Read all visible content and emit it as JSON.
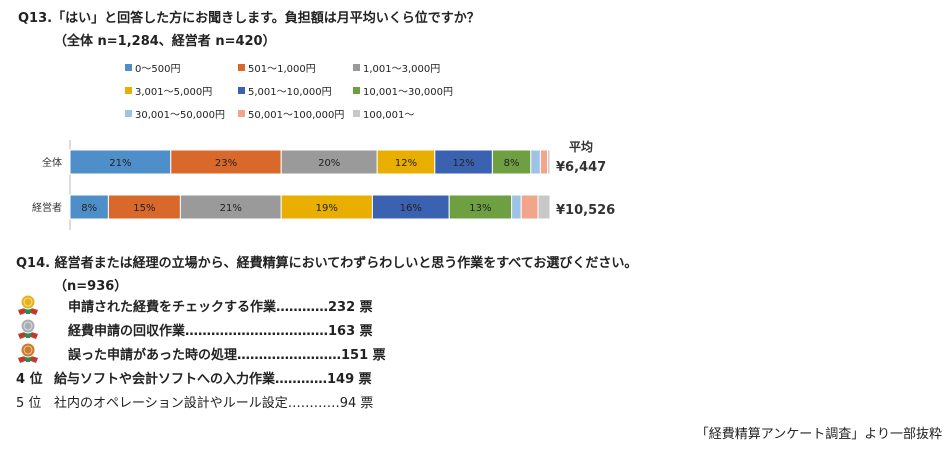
{
  "q13": {
    "title": "Q13.「はい」と回答した方にお聞きします。負担額は月平均いくら位ですか？",
    "subtitle": "（全体 n=1,284、経営者 n=420）"
  },
  "chart_data": {
    "type": "bar",
    "orientation": "horizontal-stacked-100",
    "categories": [
      "全体",
      "経営者"
    ],
    "legend_placement": "top",
    "series": [
      {
        "name": "0～500円",
        "color": "#4f8fc9",
        "values": [
          21,
          8
        ],
        "labels": [
          "21%",
          "8%"
        ]
      },
      {
        "name": "501～1,000円",
        "color": "#d9682b",
        "values": [
          23,
          15
        ],
        "labels": [
          "23%",
          "15%"
        ]
      },
      {
        "name": "1,001～3,000円",
        "color": "#9a9a9a",
        "values": [
          20,
          21
        ],
        "labels": [
          "20%",
          "21%"
        ]
      },
      {
        "name": "3,001～5,000円",
        "color": "#e8ae00",
        "values": [
          12,
          19
        ],
        "labels": [
          "12%",
          "19%"
        ]
      },
      {
        "name": "5,001～10,000円",
        "color": "#3b62b0",
        "values": [
          12,
          16
        ],
        "labels": [
          "12%",
          "16%"
        ]
      },
      {
        "name": "10,001～30,000円",
        "color": "#6ea041",
        "values": [
          8,
          13
        ],
        "labels": [
          "8%",
          "13%"
        ]
      },
      {
        "name": "30,001～50,000円",
        "color": "#9ec3e6",
        "values": [
          2,
          2
        ],
        "labels": [
          "",
          ""
        ]
      },
      {
        "name": "50,001～100,000円",
        "color": "#f2a58a",
        "values": [
          1.5,
          3.5
        ],
        "labels": [
          "",
          ""
        ]
      },
      {
        "name": "100,001～",
        "color": "#c8c8c8",
        "values": [
          0.5,
          2.5
        ],
        "labels": [
          "",
          ""
        ]
      }
    ],
    "average_title": "平均",
    "averages": [
      "¥6,447",
      "¥10,526"
    ]
  },
  "q14": {
    "title": "Q14. 経営者または経理の立場から、経費精算においてわずらわしいと思う作業をすべてお選びください。",
    "subtitle": "（n=936）",
    "ranks": [
      {
        "rank": "",
        "badge": "gold-medal-icon",
        "badge_color": "#e8b21a",
        "text": "申請された経費をチェックする作業…………",
        "value": "232 票",
        "bold": true
      },
      {
        "rank": "",
        "badge": "silver-medal-icon",
        "badge_color": "#a9aeb5",
        "text": "経費申請の回収作業……………………………",
        "value": "163 票",
        "bold": true
      },
      {
        "rank": "",
        "badge": "bronze-medal-icon",
        "badge_color": "#d0782c",
        "text": "誤った申請があった時の処理……………………",
        "value": "151 票",
        "bold": true
      },
      {
        "rank": "4 位",
        "badge": "",
        "badge_color": "",
        "text": "給与ソフトや会計ソフトへの入力作業…………",
        "value": "149 票",
        "bold": true
      },
      {
        "rank": "5 位",
        "badge": "",
        "badge_color": "",
        "text": "社内のオペレーション設計やルール設定…………",
        "value": "94 票",
        "bold": false
      }
    ]
  },
  "footer": "「経費精算アンケート調査」より一部抜粋"
}
